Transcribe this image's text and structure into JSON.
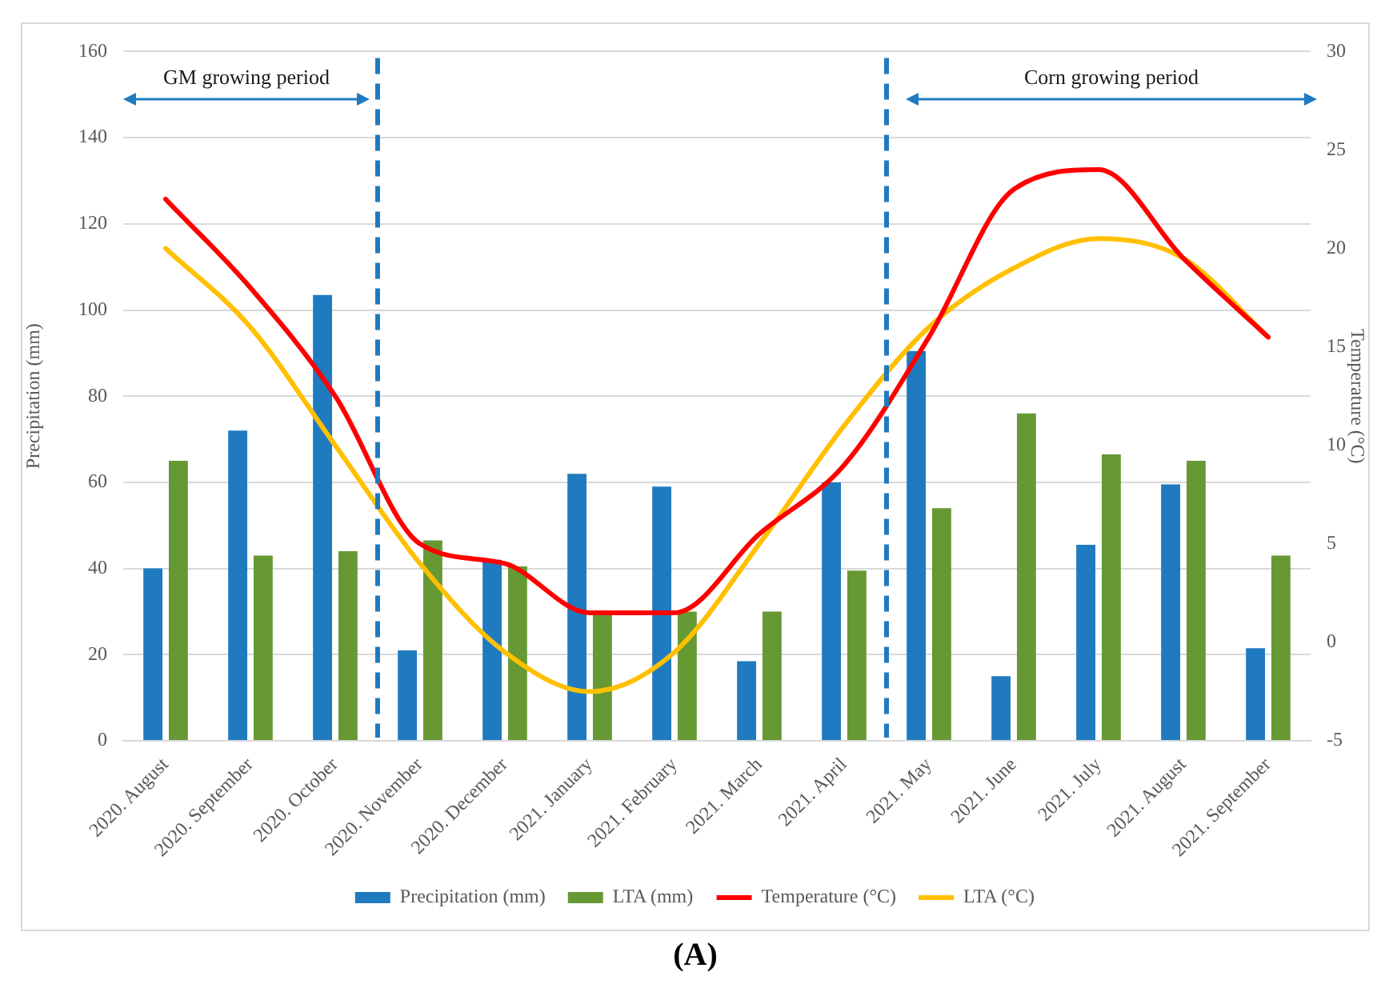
{
  "chart_data": {
    "type": "bar",
    "title": "(A)",
    "ylabel": "Precipitation (mm)",
    "y2label": "Temperature (°C)",
    "categories": [
      "2020. August",
      "2020. September",
      "2020. October",
      "2020. November",
      "2020. December",
      "2021. January",
      "2021. February",
      "2021. March",
      "2021. April",
      "2021. May",
      "2021. June",
      "2021. July",
      "2021. August",
      "2021. September"
    ],
    "series": [
      {
        "name": "Precipitation (mm)",
        "color": "#1f7ac0",
        "values": [
          40,
          72,
          103.5,
          21,
          42,
          62,
          59,
          18.5,
          60,
          90.5,
          15,
          45.5,
          59.5,
          21.5
        ]
      },
      {
        "name": "LTA (mm)",
        "color": "#669933",
        "values": [
          65,
          43,
          44,
          46.5,
          40.5,
          29.5,
          30,
          30,
          39.5,
          54,
          76,
          66.5,
          65,
          43
        ]
      },
      {
        "name": "Temperature (°C)",
        "type": "line",
        "axis": "y2",
        "color": "#ff0000",
        "values": [
          22.5,
          18,
          12.5,
          5,
          4,
          1.5,
          1.5,
          5.5,
          9,
          15.5,
          23,
          24,
          19.5,
          15.5
        ]
      },
      {
        "name": "LTA (°C)",
        "type": "line",
        "axis": "y2",
        "color": "#ffc000",
        "values": [
          20,
          16,
          10,
          4,
          -0.5,
          -2.5,
          -0.5,
          5,
          11,
          16,
          19,
          20.5,
          19.5,
          15.5
        ]
      }
    ],
    "ylim": [
      0,
      160
    ],
    "yticks": [
      0,
      20,
      40,
      60,
      80,
      100,
      120,
      140,
      160
    ],
    "y2lim": [
      -5,
      30
    ],
    "y2ticks": [
      -5,
      0,
      5,
      10,
      15,
      20,
      25,
      30
    ],
    "grid": "y",
    "legend": "bottom",
    "marker": "none",
    "annotations": [
      "GM growing period",
      "Corn growing period"
    ]
  }
}
